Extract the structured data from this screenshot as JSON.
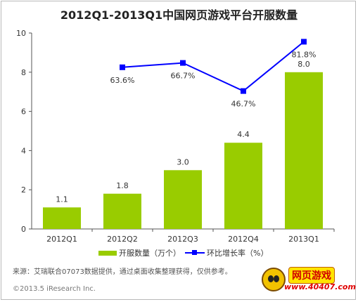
{
  "chart_data": {
    "type": "bar",
    "title": "2012Q1-2013Q1中国网页游戏平台开服数量",
    "categories": [
      "2012Q1",
      "2012Q2",
      "2012Q3",
      "2012Q4",
      "2013Q1"
    ],
    "series": [
      {
        "name": "开服数量（万个）",
        "type": "bar",
        "values": [
          1.1,
          1.8,
          3.0,
          4.4,
          8.0
        ],
        "labels": [
          "1.1",
          "1.8",
          "3.0",
          "4.4",
          "8.0"
        ],
        "color": "#99cc00"
      },
      {
        "name": "环比增长率（%）",
        "type": "line",
        "values": [
          null,
          63.6,
          66.7,
          46.7,
          81.8
        ],
        "labels": [
          "",
          "63.6%",
          "66.7%",
          "46.7%",
          "81.8%"
        ],
        "color": "#0000ff"
      }
    ],
    "ylim": [
      0,
      10
    ],
    "yticks": [
      "0",
      "2",
      "4",
      "6",
      "8",
      "10"
    ],
    "grid": false,
    "legend": "bottom"
  },
  "source_note": "来源：艾瑞联合07073数据提供，通过桌面收集整理获得，仅供参考。",
  "copyright": "©2013.5 iResearch Inc.",
  "logo": {
    "text": "网页游戏",
    "url": "www.40407.com"
  }
}
